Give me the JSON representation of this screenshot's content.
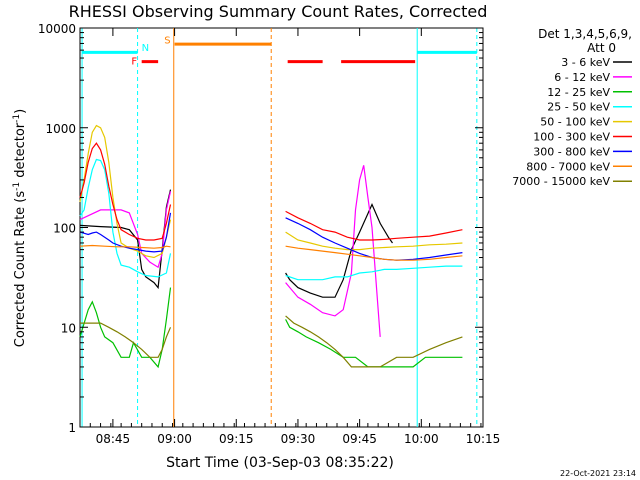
{
  "chart_data": {
    "type": "line",
    "title": "RHESSI Observing Summary Count Rates, Corrected",
    "xlabel": "Start Time (03-Sep-03 08:35:22)",
    "ylabel": "Corrected Count Rate (s^-1 detector^-1)",
    "ylabel_main": "Corrected Count Rate (s",
    "ylabel_sup": "-1",
    "ylabel_mid": " detector",
    "ylabel_end": ")",
    "yscale": "log",
    "xlim": [
      37.0,
      135.0
    ],
    "ylim": [
      1,
      10000
    ],
    "x_ticks": [
      {
        "v": 45,
        "label": "08:45"
      },
      {
        "v": 60,
        "label": "09:00"
      },
      {
        "v": 75,
        "label": "09:15"
      },
      {
        "v": 90,
        "label": "09:30"
      },
      {
        "v": 105,
        "label": "09:45"
      },
      {
        "v": 120,
        "label": "10:00"
      },
      {
        "v": 135,
        "label": "10:15"
      }
    ],
    "y_ticks": [
      {
        "v": 1,
        "label": "1"
      },
      {
        "v": 10,
        "label": "10"
      },
      {
        "v": 100,
        "label": "100"
      },
      {
        "v": 1000,
        "label": "1000"
      },
      {
        "v": 10000,
        "label": "10000"
      }
    ],
    "legend": {
      "header_line1": "Det 1,3,4,5,6,9,",
      "header_line2": "Att 0",
      "placement": "top-right, outside plot"
    },
    "series": [
      {
        "name": "3 - 6 keV",
        "color": "#000000",
        "points": [
          [
            37,
            105
          ],
          [
            42,
            102
          ],
          [
            47,
            100
          ],
          [
            49,
            95
          ],
          [
            51,
            75
          ],
          [
            52,
            38
          ],
          [
            53,
            32
          ],
          [
            55,
            28
          ],
          [
            56,
            25
          ],
          [
            57,
            60
          ],
          [
            58,
            160
          ],
          [
            59,
            240
          ],
          [
            null,
            null
          ],
          [
            87,
            35
          ],
          [
            88,
            30
          ],
          [
            90,
            25
          ],
          [
            93,
            22
          ],
          [
            96,
            20
          ],
          [
            99,
            20
          ],
          [
            101,
            30
          ],
          [
            103,
            60
          ],
          [
            105,
            90
          ],
          [
            108,
            170
          ],
          [
            110,
            110
          ],
          [
            112,
            80
          ],
          [
            113,
            70
          ]
        ]
      },
      {
        "name": "6 - 12 keV",
        "color": "#ff00ff",
        "points": [
          [
            37,
            120
          ],
          [
            42,
            150
          ],
          [
            47,
            150
          ],
          [
            49,
            140
          ],
          [
            51,
            85
          ],
          [
            52,
            55
          ],
          [
            54,
            45
          ],
          [
            56,
            40
          ],
          [
            57,
            55
          ],
          [
            58,
            150
          ],
          [
            59,
            230
          ],
          [
            null,
            null
          ],
          [
            87,
            28
          ],
          [
            90,
            20
          ],
          [
            93,
            17
          ],
          [
            96,
            14
          ],
          [
            99,
            13
          ],
          [
            101,
            15
          ],
          [
            103,
            35
          ],
          [
            104,
            150
          ],
          [
            105,
            300
          ],
          [
            106,
            420
          ],
          [
            107,
            200
          ],
          [
            108,
            100
          ],
          [
            110,
            8
          ]
        ]
      },
      {
        "name": "12 - 25 keV",
        "color": "#00c000",
        "points": [
          [
            37,
            8
          ],
          [
            39,
            15
          ],
          [
            40,
            18
          ],
          [
            41,
            14
          ],
          [
            42,
            10
          ],
          [
            43,
            8
          ],
          [
            45,
            7
          ],
          [
            47,
            5
          ],
          [
            49,
            5
          ],
          [
            50,
            7
          ],
          [
            52,
            5
          ],
          [
            54,
            5
          ],
          [
            56,
            4
          ],
          [
            57,
            6
          ],
          [
            58,
            12
          ],
          [
            59,
            25
          ],
          [
            null,
            null
          ],
          [
            87,
            12
          ],
          [
            88,
            10
          ],
          [
            90,
            9
          ],
          [
            92,
            8
          ],
          [
            95,
            7
          ],
          [
            98,
            6
          ],
          [
            101,
            5
          ],
          [
            104,
            5
          ],
          [
            107,
            4
          ],
          [
            110,
            4
          ],
          [
            114,
            4
          ],
          [
            118,
            4
          ],
          [
            121,
            5
          ],
          [
            124,
            5
          ],
          [
            127,
            5
          ],
          [
            130,
            5
          ]
        ]
      },
      {
        "name": "25 - 50 keV",
        "color": "#00ffff",
        "points": [
          [
            37,
            130
          ],
          [
            38,
            150
          ],
          [
            39,
            250
          ],
          [
            40,
            380
          ],
          [
            41,
            480
          ],
          [
            42,
            470
          ],
          [
            43,
            380
          ],
          [
            44,
            220
          ],
          [
            45,
            90
          ],
          [
            46,
            55
          ],
          [
            47,
            42
          ],
          [
            49,
            40
          ],
          [
            51,
            36
          ],
          [
            53,
            33
          ],
          [
            56,
            32
          ],
          [
            58,
            35
          ],
          [
            59,
            55
          ],
          [
            null,
            null
          ],
          [
            87,
            33
          ],
          [
            90,
            30
          ],
          [
            93,
            30
          ],
          [
            96,
            30
          ],
          [
            99,
            32
          ],
          [
            102,
            32
          ],
          [
            105,
            35
          ],
          [
            108,
            36
          ],
          [
            111,
            38
          ],
          [
            114,
            38
          ],
          [
            118,
            39
          ],
          [
            122,
            40
          ],
          [
            126,
            41
          ],
          [
            130,
            41
          ]
        ]
      },
      {
        "name": "50 - 100 keV",
        "color": "#e6c800",
        "points": [
          [
            37,
            180
          ],
          [
            38,
            300
          ],
          [
            39,
            550
          ],
          [
            40,
            900
          ],
          [
            41,
            1050
          ],
          [
            42,
            1000
          ],
          [
            43,
            800
          ],
          [
            44,
            450
          ],
          [
            45,
            200
          ],
          [
            46,
            110
          ],
          [
            47,
            70
          ],
          [
            49,
            62
          ],
          [
            51,
            58
          ],
          [
            53,
            52
          ],
          [
            55,
            50
          ],
          [
            57,
            55
          ],
          [
            58,
            80
          ],
          [
            59,
            120
          ],
          [
            null,
            null
          ],
          [
            87,
            90
          ],
          [
            90,
            75
          ],
          [
            93,
            70
          ],
          [
            96,
            65
          ],
          [
            99,
            62
          ],
          [
            102,
            60
          ],
          [
            105,
            60
          ],
          [
            108,
            62
          ],
          [
            111,
            63
          ],
          [
            114,
            64
          ],
          [
            118,
            65
          ],
          [
            122,
            67
          ],
          [
            126,
            68
          ],
          [
            130,
            70
          ]
        ]
      },
      {
        "name": "100 - 300 keV",
        "color": "#ff0000",
        "points": [
          [
            37,
            200
          ],
          [
            38,
            280
          ],
          [
            39,
            450
          ],
          [
            40,
            620
          ],
          [
            41,
            700
          ],
          [
            42,
            600
          ],
          [
            43,
            430
          ],
          [
            44,
            260
          ],
          [
            45,
            170
          ],
          [
            46,
            120
          ],
          [
            47,
            95
          ],
          [
            49,
            85
          ],
          [
            51,
            78
          ],
          [
            53,
            75
          ],
          [
            55,
            75
          ],
          [
            57,
            78
          ],
          [
            58,
            110
          ],
          [
            59,
            170
          ],
          [
            null,
            null
          ],
          [
            87,
            145
          ],
          [
            90,
            125
          ],
          [
            93,
            110
          ],
          [
            96,
            95
          ],
          [
            99,
            90
          ],
          [
            102,
            80
          ],
          [
            105,
            75
          ],
          [
            108,
            75
          ],
          [
            111,
            76
          ],
          [
            114,
            78
          ],
          [
            118,
            80
          ],
          [
            122,
            82
          ],
          [
            126,
            88
          ],
          [
            130,
            95
          ]
        ]
      },
      {
        "name": "300 - 800 keV",
        "color": "#0000ff",
        "points": [
          [
            37,
            90
          ],
          [
            39,
            85
          ],
          [
            40,
            88
          ],
          [
            41,
            90
          ],
          [
            42,
            85
          ],
          [
            43,
            80
          ],
          [
            44,
            75
          ],
          [
            45,
            70
          ],
          [
            47,
            65
          ],
          [
            49,
            62
          ],
          [
            51,
            60
          ],
          [
            53,
            58
          ],
          [
            55,
            57
          ],
          [
            57,
            58
          ],
          [
            58,
            80
          ],
          [
            59,
            140
          ],
          [
            null,
            null
          ],
          [
            87,
            125
          ],
          [
            90,
            110
          ],
          [
            93,
            95
          ],
          [
            96,
            80
          ],
          [
            99,
            70
          ],
          [
            102,
            62
          ],
          [
            105,
            55
          ],
          [
            108,
            50
          ],
          [
            111,
            48
          ],
          [
            114,
            47
          ],
          [
            118,
            48
          ],
          [
            122,
            50
          ],
          [
            126,
            53
          ],
          [
            130,
            56
          ]
        ]
      },
      {
        "name": "800 - 7000 keV",
        "color": "#ff8000",
        "points": [
          [
            37,
            65
          ],
          [
            40,
            66
          ],
          [
            43,
            65
          ],
          [
            46,
            64
          ],
          [
            49,
            64
          ],
          [
            52,
            63
          ],
          [
            55,
            62
          ],
          [
            57,
            63
          ],
          [
            58,
            65
          ],
          [
            59,
            64
          ],
          [
            null,
            null
          ],
          [
            87,
            65
          ],
          [
            90,
            62
          ],
          [
            93,
            60
          ],
          [
            96,
            58
          ],
          [
            99,
            56
          ],
          [
            102,
            54
          ],
          [
            105,
            52
          ],
          [
            108,
            50
          ],
          [
            111,
            48
          ],
          [
            114,
            47
          ],
          [
            118,
            47
          ],
          [
            122,
            48
          ],
          [
            126,
            50
          ],
          [
            130,
            52
          ]
        ]
      },
      {
        "name": "7000 - 15000 keV",
        "color": "#808000",
        "points": [
          [
            37,
            11
          ],
          [
            40,
            11
          ],
          [
            42,
            11
          ],
          [
            44,
            10
          ],
          [
            46,
            9
          ],
          [
            48,
            8
          ],
          [
            50,
            7
          ],
          [
            52,
            6
          ],
          [
            54,
            5
          ],
          [
            56,
            5
          ],
          [
            57,
            6
          ],
          [
            58,
            8
          ],
          [
            59,
            10
          ],
          [
            null,
            null
          ],
          [
            87,
            13
          ],
          [
            89,
            11
          ],
          [
            91,
            10
          ],
          [
            93,
            9
          ],
          [
            95,
            8
          ],
          [
            97,
            7
          ],
          [
            99,
            6
          ],
          [
            101,
            5
          ],
          [
            103,
            4
          ],
          [
            106,
            4
          ],
          [
            110,
            4
          ],
          [
            114,
            5
          ],
          [
            118,
            5
          ],
          [
            122,
            6
          ],
          [
            126,
            7
          ],
          [
            130,
            8
          ]
        ]
      }
    ],
    "vlines": [
      {
        "x": 37.5,
        "color": "#00ffff",
        "style": "solid"
      },
      {
        "x": 51.0,
        "color": "#00ffff",
        "style": "dashed"
      },
      {
        "x": 59.8,
        "color": "#ff8000",
        "style": "solid"
      },
      {
        "x": 83.5,
        "color": "#ff8000",
        "style": "dashed"
      },
      {
        "x": 119.0,
        "color": "#00ffff",
        "style": "solid"
      },
      {
        "x": 133.5,
        "color": "#00ffff",
        "style": "dashed"
      }
    ],
    "flag_bars": [
      {
        "x0": 37.5,
        "x1": 51.0,
        "level": 5700,
        "color": "#00ffff"
      },
      {
        "x0": 119.0,
        "x1": 133.5,
        "level": 5700,
        "color": "#00ffff"
      },
      {
        "x0": 60.0,
        "x1": 83.5,
        "level": 6900,
        "color": "#ff8000"
      },
      {
        "x0": 52.0,
        "x1": 56.0,
        "level": 4600,
        "color": "#ff0000"
      },
      {
        "x0": 87.5,
        "x1": 96.0,
        "level": 4600,
        "color": "#ff0000"
      },
      {
        "x0": 100.5,
        "x1": 118.5,
        "level": 4600,
        "color": "#ff0000"
      }
    ],
    "flag_labels": [
      {
        "text": "N",
        "x": 52.0,
        "level": 5900,
        "color": "#00ffff"
      },
      {
        "text": "S",
        "x": 57.5,
        "level": 7000,
        "color": "#ff8000"
      },
      {
        "text": "F",
        "x": 49.5,
        "level": 4300,
        "color": "#ff0000"
      }
    ],
    "footer_timestamp": "22-Oct-2021 23:14"
  }
}
